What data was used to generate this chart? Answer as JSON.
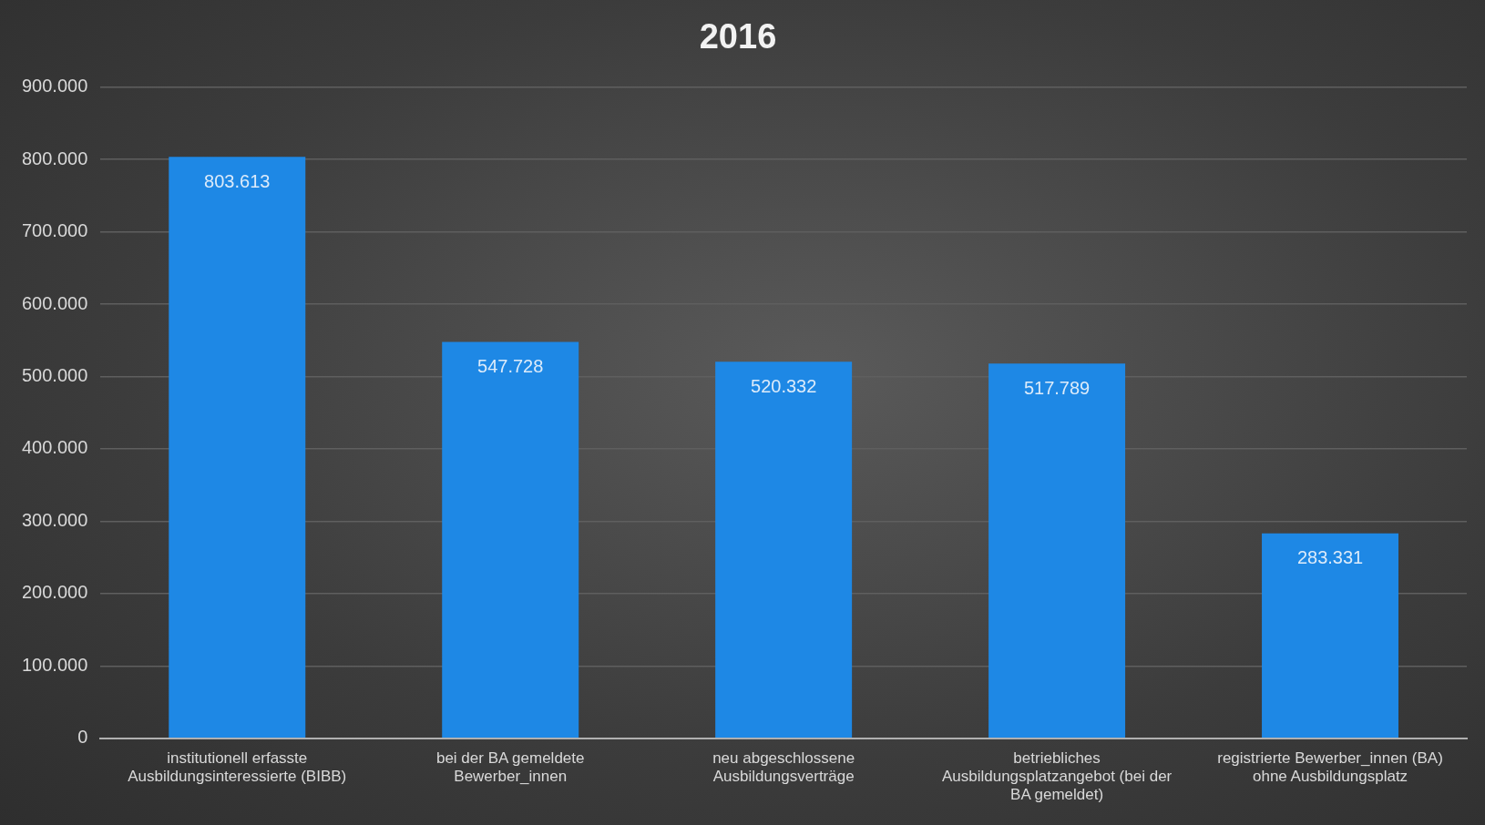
{
  "chart_data": {
    "type": "bar",
    "title": "2016",
    "categories": [
      "institutionell erfasste Ausbildungsinteressierte (BIBB)",
      "bei der BA gemeldete Bewerber_innen",
      "neu abgeschlossene Ausbildungsverträge",
      "betriebliches Ausbildungsplatzangebot (bei der BA gemeldet)",
      "registrierte Bewerber_innen (BA) ohne Ausbildungsplatz"
    ],
    "values": [
      803613,
      547728,
      520332,
      517789,
      283331
    ],
    "value_labels": [
      "803.613",
      "547.728",
      "520.332",
      "517.789",
      "283.331"
    ],
    "color": "#1e88e5",
    "ylim": [
      0,
      900000
    ],
    "yticks": [
      {
        "value": 0,
        "label": "0"
      },
      {
        "value": 100000,
        "label": "100.000"
      },
      {
        "value": 200000,
        "label": "200.000"
      },
      {
        "value": 300000,
        "label": "300.000"
      },
      {
        "value": 400000,
        "label": "400.000"
      },
      {
        "value": 500000,
        "label": "500.000"
      },
      {
        "value": 600000,
        "label": "600.000"
      },
      {
        "value": 700000,
        "label": "700.000"
      },
      {
        "value": 800000,
        "label": "800.000"
      },
      {
        "value": 900000,
        "label": "900.000"
      }
    ],
    "grid": "y",
    "legend": false
  }
}
